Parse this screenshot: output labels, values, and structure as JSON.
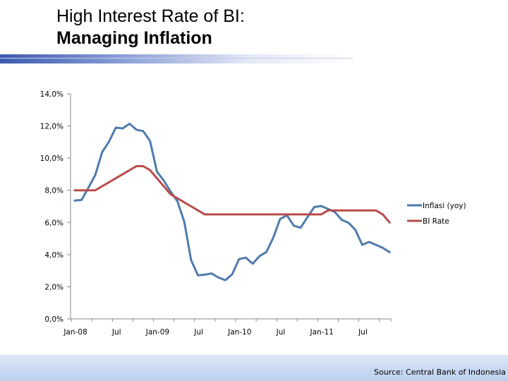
{
  "slide": {
    "title_line1": "High Interest Rate of BI:",
    "title_line2": "Managing Inflation",
    "source": "Source: Central Bank of Indonesia"
  },
  "colors": {
    "inflation": "#4f7bad",
    "bi_rate": "#b84c4a",
    "axis": "#888888"
  },
  "chart_data": {
    "type": "line",
    "title": "",
    "xlabel": "",
    "ylabel": "",
    "ylim": [
      0,
      14
    ],
    "yticks": [
      "0,0%",
      "2,0%",
      "4,0%",
      "6,0%",
      "8,0%",
      "10,0%",
      "12,0%",
      "14,0%"
    ],
    "xticks": [
      {
        "index": 0,
        "label": "Jan-08"
      },
      {
        "index": 6,
        "label": "Jul"
      },
      {
        "index": 12,
        "label": "Jan-09"
      },
      {
        "index": 18,
        "label": "Jul"
      },
      {
        "index": 24,
        "label": "Jan-10"
      },
      {
        "index": 30,
        "label": "Jul"
      },
      {
        "index": 36,
        "label": "Jan-11"
      },
      {
        "index": 42,
        "label": "Jul"
      }
    ],
    "legend_position": "right",
    "series": [
      {
        "name": "Inflasi (yoy)",
        "values": [
          7.36,
          7.4,
          8.17,
          8.96,
          10.38,
          11.03,
          11.9,
          11.85,
          12.14,
          11.77,
          11.68,
          11.06,
          9.17,
          8.6,
          7.92,
          7.31,
          6.04,
          3.65,
          2.71,
          2.75,
          2.83,
          2.57,
          2.41,
          2.78,
          3.72,
          3.81,
          3.43,
          3.91,
          4.16,
          5.05,
          6.22,
          6.44,
          5.8,
          5.67,
          6.33,
          6.96,
          7.02,
          6.84,
          6.65,
          6.16,
          5.98,
          5.54,
          4.61,
          4.79,
          4.61,
          4.42,
          4.15
        ]
      },
      {
        "name": "BI Rate",
        "values": [
          8.0,
          8.0,
          8.0,
          8.0,
          8.25,
          8.5,
          8.75,
          9.0,
          9.25,
          9.5,
          9.5,
          9.25,
          8.75,
          8.25,
          7.75,
          7.5,
          7.25,
          7.0,
          6.75,
          6.5,
          6.5,
          6.5,
          6.5,
          6.5,
          6.5,
          6.5,
          6.5,
          6.5,
          6.5,
          6.5,
          6.5,
          6.5,
          6.5,
          6.5,
          6.5,
          6.5,
          6.5,
          6.75,
          6.75,
          6.75,
          6.75,
          6.75,
          6.75,
          6.75,
          6.75,
          6.5,
          6.0
        ]
      }
    ]
  }
}
